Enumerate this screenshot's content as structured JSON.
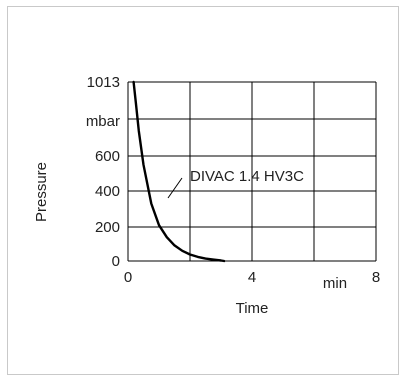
{
  "chart_data": {
    "type": "line",
    "xlabel": "Time",
    "ylabel": "Pressure",
    "x_unit": "min",
    "y_unit": "mbar",
    "xlim": [
      0,
      8
    ],
    "ylim": [
      0,
      1013
    ],
    "x_ticks": [
      "0",
      "4",
      "8"
    ],
    "y_ticks": [
      "0",
      "200",
      "400",
      "600",
      "1013"
    ],
    "grid": true,
    "series": [
      {
        "name": "DIVAC 1.4 HV3C",
        "x": [
          0.18,
          0.25,
          0.35,
          0.5,
          0.75,
          1.0,
          1.25,
          1.5,
          1.75,
          2.0,
          2.25,
          2.5,
          2.75,
          3.0,
          3.1
        ],
        "y": [
          1013,
          900,
          740,
          550,
          330,
          210,
          140,
          92,
          60,
          38,
          24,
          14,
          8,
          3,
          0
        ]
      }
    ],
    "annotation": "DIVAC 1.4 HV3C"
  }
}
